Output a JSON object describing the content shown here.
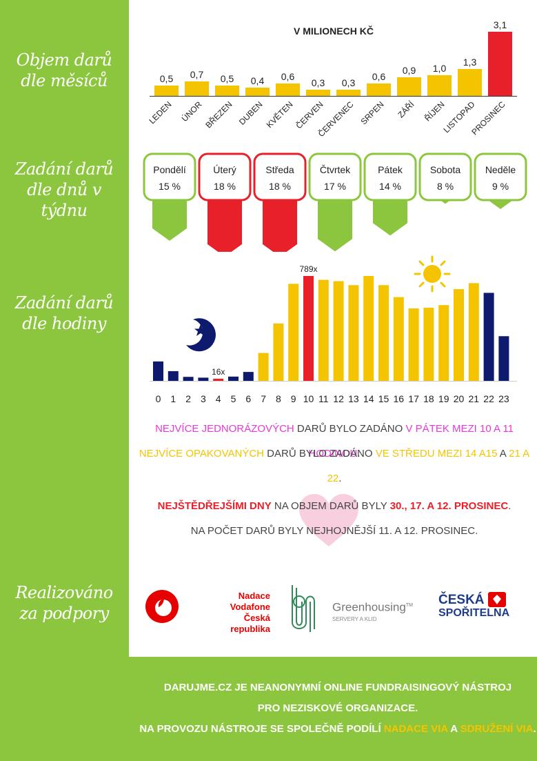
{
  "sections": {
    "monthly": "Objem darů dle měsíců",
    "weekday": "Zadání darů dle dnů v týdnu",
    "hourly": "Zadání darů dle hodiny",
    "support": "Realizováno za podpory"
  },
  "chart_data": [
    {
      "type": "bar",
      "title": "V MILIONECH KČ",
      "categories": [
        "LEDEN",
        "ÚNOR",
        "BŘEZEN",
        "DUBEN",
        "KVĚTEN",
        "ČERVEN",
        "ČERVENEC",
        "SRPEN",
        "ZÁŘÍ",
        "ŘÍJEN",
        "LISTOPAD",
        "PROSINEC"
      ],
      "values": [
        0.5,
        0.7,
        0.5,
        0.4,
        0.6,
        0.3,
        0.3,
        0.6,
        0.9,
        1.0,
        1.3,
        3.1
      ],
      "value_labels": [
        "0,5",
        "0,7",
        "0,5",
        "0,4",
        "0,6",
        "0,3",
        "0,3",
        "0,6",
        "0,9",
        "1,0",
        "1,3",
        "3,1"
      ],
      "colors": [
        "#f5c400",
        "#f5c400",
        "#f5c400",
        "#f5c400",
        "#f5c400",
        "#f5c400",
        "#f5c400",
        "#f5c400",
        "#f5c400",
        "#f5c400",
        "#f5c400",
        "#e8202a"
      ],
      "ylim": [
        0,
        3.1
      ]
    },
    {
      "type": "bar",
      "categories": [
        "Pondělí",
        "Úterý",
        "Středa",
        "Čtvrtek",
        "Pátek",
        "Sobota",
        "Neděle"
      ],
      "values": [
        15,
        18,
        18,
        17,
        14,
        8,
        9
      ],
      "value_labels": [
        "15 %",
        "18 %",
        "18 %",
        "17 %",
        "14 %",
        "8 %",
        "9 %"
      ],
      "colors": [
        "#8cc63f",
        "#e8202a",
        "#e8202a",
        "#8cc63f",
        "#8cc63f",
        "#8cc63f",
        "#8cc63f"
      ]
    },
    {
      "type": "bar",
      "categories": [
        "0",
        "1",
        "2",
        "3",
        "4",
        "5",
        "6",
        "7",
        "8",
        "9",
        "10",
        "11",
        "12",
        "13",
        "14",
        "15",
        "16",
        "17",
        "18",
        "19",
        "20",
        "21",
        "22",
        "23"
      ],
      "values": [
        146,
        73,
        30,
        24,
        16,
        32,
        67,
        210,
        432,
        730,
        789,
        760,
        750,
        720,
        789,
        720,
        630,
        545,
        550,
        570,
        690,
        735,
        662,
        336
      ],
      "annotations": [
        {
          "index": 4,
          "label": "16x"
        },
        {
          "index": 10,
          "label": "789x"
        }
      ],
      "colors": [
        "#0d1a6e",
        "#0d1a6e",
        "#0d1a6e",
        "#0d1a6e",
        "#e8202a",
        "#0d1a6e",
        "#0d1a6e",
        "#f5c400",
        "#f5c400",
        "#f5c400",
        "#e8202a",
        "#f5c400",
        "#f5c400",
        "#f5c400",
        "#f5c400",
        "#f5c400",
        "#f5c400",
        "#f5c400",
        "#f5c400",
        "#f5c400",
        "#f5c400",
        "#f5c400",
        "#0d1a6e",
        "#0d1a6e"
      ],
      "ylim": [
        0,
        789
      ]
    }
  ],
  "notes": {
    "line1": [
      "Nejvíce jednorázových",
      " darů bylo zadáno ",
      "v pátek mezi 10 a 11 hodinou",
      "."
    ],
    "line2": [
      "Nejvíce opakovaných",
      " darů bylo zadáno ",
      "ve středu mezi 14 a15",
      " a ",
      "21 a 22",
      "."
    ],
    "line3": [
      "Nejštědřejšími dny",
      " na objem darů byly ",
      "30., 17. a 12. prosinec",
      "."
    ],
    "line4": "na počet darů byly nejhojnější 11. a 12. prosinec."
  },
  "logos": {
    "vodafone": [
      "Nadace",
      "Vodafone",
      "Česká republika"
    ],
    "greenhousing": "Greenhousing",
    "greenhousing_tm": "TM",
    "greenhousing_sub": "SERVERY A KLID",
    "cs_line1": "ČESKÁ",
    "cs_line2": "SPOŘITELNA"
  },
  "footer": {
    "line1": "Darujme.cz je neanonymní online fundraisingový nástroj",
    "line2": "pro neziskové organizace.",
    "line3a": "Na provozu nástroje se společně podílí ",
    "line3b": "Nadace VIA",
    "line3c": " a ",
    "line3d": "Sdružení VIA",
    "line3e": "."
  },
  "colors": {
    "green": "#8cc63f",
    "yellow": "#f5c400",
    "red": "#e8202a",
    "navy": "#0d1a6e"
  }
}
